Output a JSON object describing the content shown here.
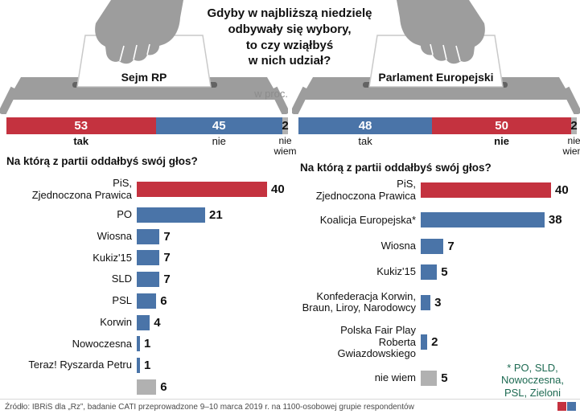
{
  "title_lines": [
    "Gdyby w najbliższą niedzielę",
    "odbywały się wybory,",
    "to czy wziąłbyś",
    "w nich udział?"
  ],
  "unit_label": "w proc.",
  "colors": {
    "red": "#c4323f",
    "blue": "#4a74a8",
    "gray": "#b1b1b1",
    "box_gray": "#9d9d9d",
    "footnote_green": "#1d6a52"
  },
  "panels": {
    "left": {
      "ballot_label": "Sejm RP",
      "question": "Na którą z partii oddałbyś swój głos?"
    },
    "right": {
      "ballot_label": "Parlament Europejski",
      "question": "Na którą z partii oddałbyś swój głos?"
    }
  },
  "chart_data": [
    {
      "id": "turnout-sejm",
      "type": "bar",
      "stacked": true,
      "title": "Sejm RP",
      "unit": "w proc.",
      "categories": [
        "tak",
        "nie",
        "nie\nwiem"
      ],
      "values": [
        53,
        45,
        2
      ],
      "colors": [
        "red",
        "blue",
        "gray"
      ],
      "bold_index": 0
    },
    {
      "id": "turnout-pe",
      "type": "bar",
      "stacked": true,
      "title": "Parlament Europejski",
      "unit": "w proc.",
      "categories": [
        "tak",
        "nie",
        "nie\nwiem"
      ],
      "values": [
        48,
        50,
        2
      ],
      "colors": [
        "blue",
        "red",
        "gray"
      ],
      "bold_index": 1
    },
    {
      "id": "parties-sejm",
      "type": "bar",
      "title": "Na którą z partii oddałbyś swój głos? (Sejm RP)",
      "categories": [
        "PiS,\nZjednoczona Prawica",
        "PO",
        "Wiosna",
        "Kukiz'15",
        "SLD",
        "PSL",
        "Korwin",
        "Nowoczesna",
        "Teraz! Ryszarda Petru",
        ""
      ],
      "values": [
        40,
        21,
        7,
        7,
        7,
        6,
        4,
        1,
        1,
        6
      ],
      "colors": [
        "red",
        "blue",
        "blue",
        "blue",
        "blue",
        "blue",
        "blue",
        "blue",
        "blue",
        "gray"
      ],
      "xlim": [
        0,
        40
      ]
    },
    {
      "id": "parties-pe",
      "type": "bar",
      "title": "Na którą z partii oddałbyś swój głos? (Parlament Europejski)",
      "categories": [
        "PiS,\nZjednoczona Prawica",
        "Koalicja Europejska*",
        "Wiosna",
        "Kukiz'15",
        "Konfederacja Korwin,\nBraun, Liroy, Narodowcy",
        "Polska Fair Play\nRoberta Gwiazdowskiego",
        "nie wiem"
      ],
      "values": [
        40,
        38,
        7,
        5,
        3,
        2,
        5
      ],
      "colors": [
        "red",
        "blue",
        "blue",
        "blue",
        "blue",
        "blue",
        "gray"
      ],
      "xlim": [
        0,
        40
      ]
    }
  ],
  "footnote_lines": [
    "* PO, SLD,",
    "Nowoczesna,",
    "PSL, Zieloni"
  ],
  "source": "Źródło: IBRiS dla „Rz”, badanie CATI przeprowadzone 9–10 marca 2019 r. na 1100-osobowej grupie respondentów"
}
